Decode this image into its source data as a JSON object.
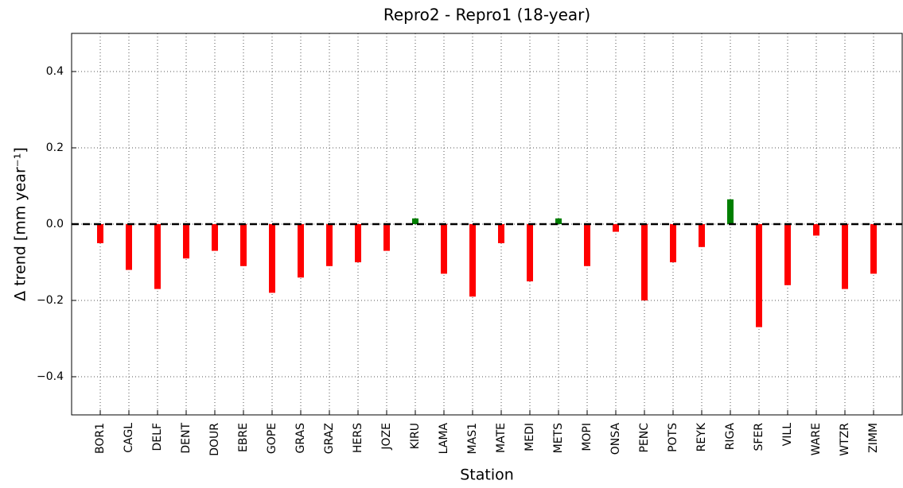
{
  "chart_data": {
    "type": "bar",
    "title": "Repro2 - Repro1 (18-year)",
    "x_label": "Station",
    "y_label": "Δ trend [mm year⁻¹]",
    "categories": [
      "BOR1",
      "CAGL",
      "DELF",
      "DENT",
      "DOUR",
      "EBRE",
      "GOPE",
      "GRAS",
      "GRAZ",
      "HERS",
      "JOZE",
      "KIRU",
      "LAMA",
      "MAS1",
      "MATE",
      "MEDI",
      "METS",
      "MOPI",
      "ONSA",
      "PENC",
      "POTS",
      "REYK",
      "RIGA",
      "SFER",
      "VILL",
      "WARE",
      "WTZR",
      "ZIMM"
    ],
    "values": [
      -0.05,
      -0.12,
      -0.17,
      -0.09,
      -0.07,
      -0.11,
      -0.18,
      -0.14,
      -0.11,
      -0.1,
      -0.07,
      0.015,
      -0.13,
      -0.19,
      -0.05,
      -0.15,
      0.015,
      -0.11,
      -0.02,
      -0.2,
      -0.1,
      -0.06,
      0.065,
      -0.27,
      -0.16,
      -0.03,
      -0.17,
      -0.13
    ],
    "colors": [
      "#ff0000",
      "#ff0000",
      "#ff0000",
      "#ff0000",
      "#ff0000",
      "#ff0000",
      "#ff0000",
      "#ff0000",
      "#ff0000",
      "#ff0000",
      "#ff0000",
      "#007f00",
      "#ff0000",
      "#ff0000",
      "#ff0000",
      "#ff0000",
      "#007f00",
      "#ff0000",
      "#ff0000",
      "#ff0000",
      "#ff0000",
      "#ff0000",
      "#007f00",
      "#ff0000",
      "#ff0000",
      "#ff0000",
      "#ff0000",
      "#ff0000"
    ],
    "ylim": [
      -0.5,
      0.5
    ],
    "yticks": [
      {
        "value": -0.4,
        "label": "−0.4"
      },
      {
        "value": -0.2,
        "label": "−0.2"
      },
      {
        "value": 0,
        "label": "0.0"
      },
      0.2,
      0.4
    ],
    "grid": true,
    "zero_line": true
  }
}
